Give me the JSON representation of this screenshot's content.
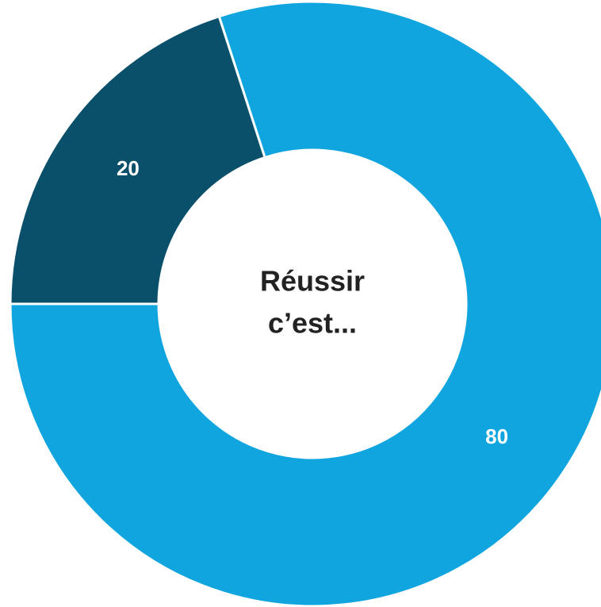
{
  "chart_data": {
    "type": "donut",
    "center_text": [
      "Réussir",
      "c’est..."
    ],
    "series": [
      {
        "values": [
          80,
          20
        ],
        "colors": [
          "#10a5df",
          "#0b506b"
        ]
      }
    ]
  }
}
